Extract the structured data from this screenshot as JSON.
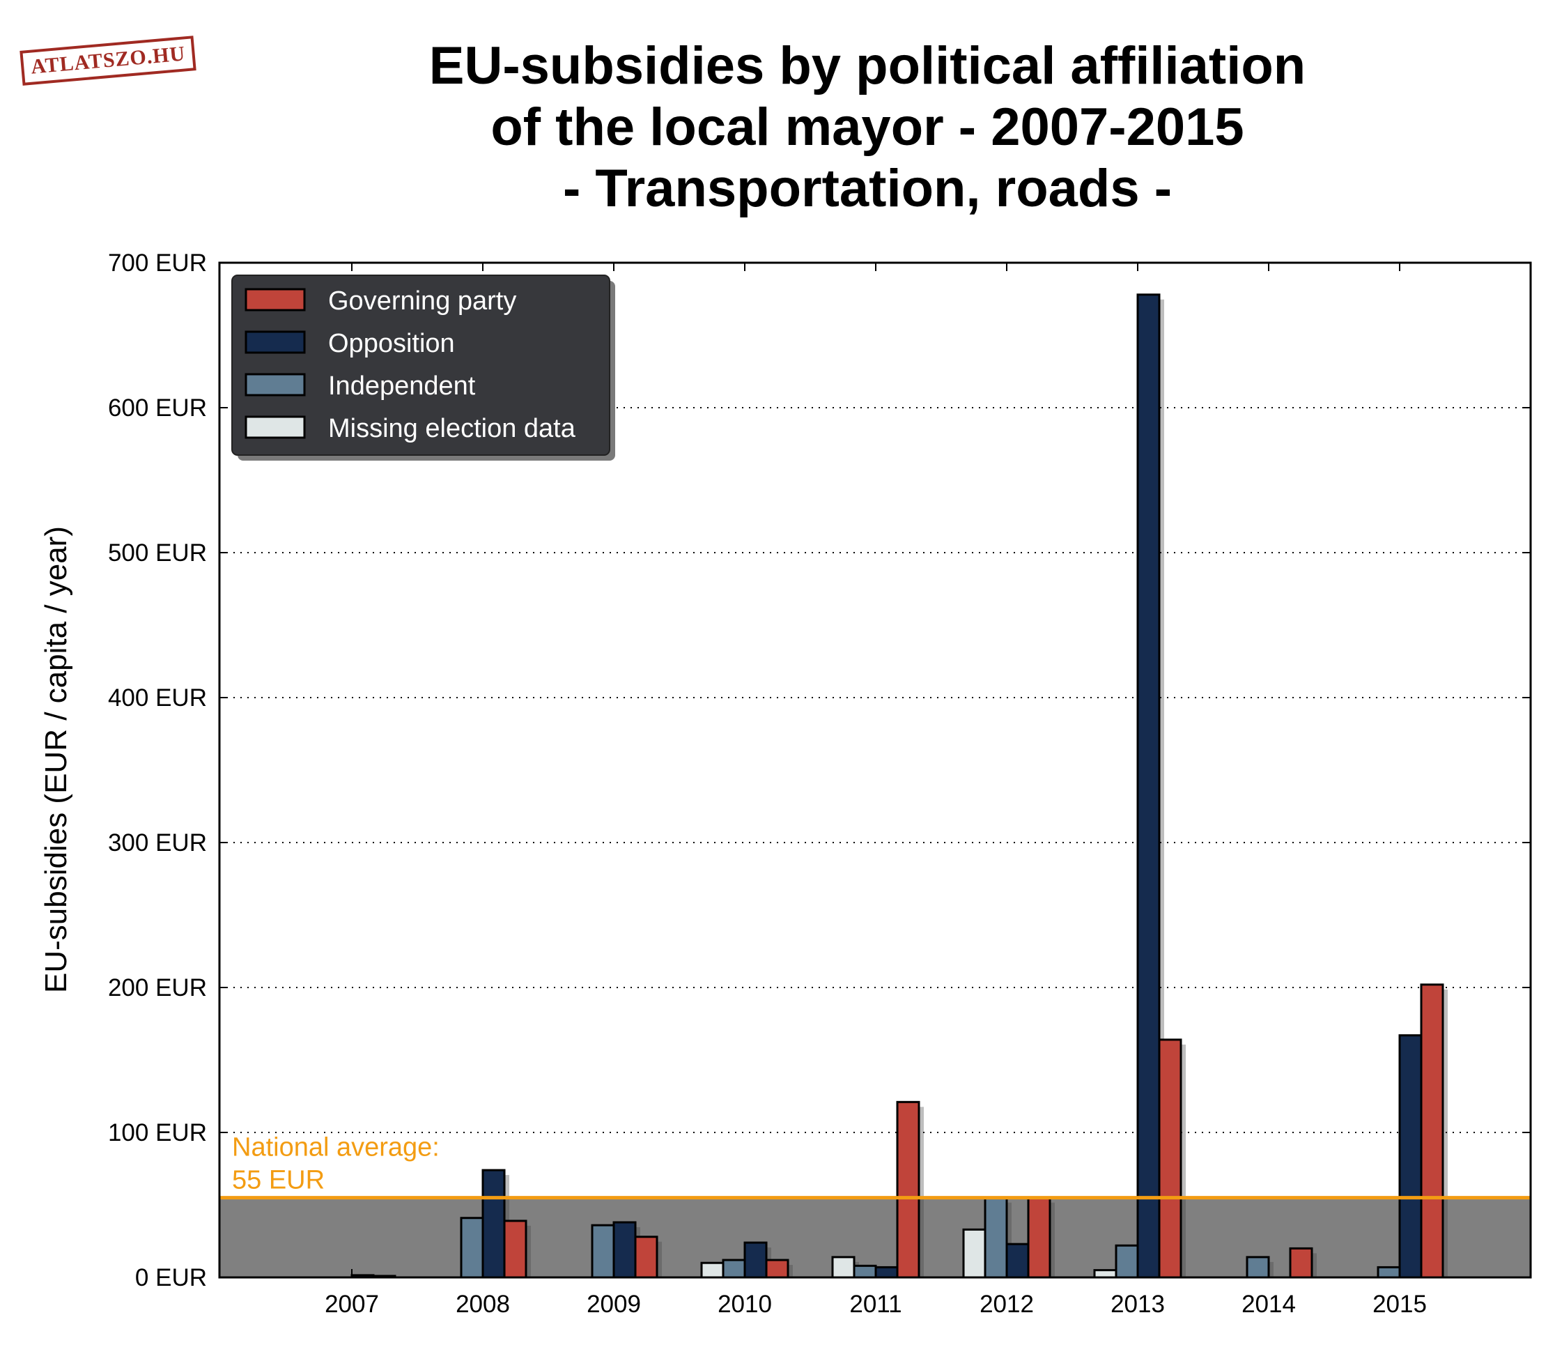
{
  "logo": "ATLATSZO.HU",
  "chart_data": {
    "type": "bar",
    "title_lines": [
      "EU-subsidies by political affiliation",
      "of the local mayor - 2007-2015",
      "- Transportation, roads -"
    ],
    "xlabel": "",
    "ylabel": "EU-subsidies (EUR / capita / year)",
    "ylim": [
      0,
      700
    ],
    "y_ticks": [
      "0 EUR",
      "100 EUR",
      "200 EUR",
      "300 EUR",
      "400 EUR",
      "500 EUR",
      "600 EUR",
      "700 EUR"
    ],
    "grid": "horizontal dotted",
    "legend_position": "top-left",
    "categories": [
      "2007",
      "2008",
      "2009",
      "2010",
      "2011",
      "2012",
      "2013",
      "2014",
      "2015"
    ],
    "series": [
      {
        "name": "Missing election data",
        "color": "#dfe6e6",
        "values": [
          0,
          0,
          0,
          10,
          14,
          33,
          5,
          0,
          0
        ]
      },
      {
        "name": "Independent",
        "color": "#607d93",
        "values": [
          0,
          41,
          36,
          12,
          8,
          55,
          22,
          14,
          7
        ]
      },
      {
        "name": "Opposition",
        "color": "#152b4e",
        "values": [
          1.5,
          74,
          38,
          24,
          7,
          23,
          678,
          0,
          167
        ]
      },
      {
        "name": "Governing party",
        "color": "#c0443a",
        "values": [
          1,
          39,
          28,
          12,
          121,
          55,
          164,
          20,
          202
        ]
      }
    ],
    "legend_order": [
      "Governing party",
      "Opposition",
      "Independent",
      "Missing election data"
    ],
    "reference_line": {
      "value": 55,
      "label_lines": [
        "National average:",
        "55 EUR"
      ],
      "color": "#f39c12",
      "fill": "#808080"
    }
  }
}
